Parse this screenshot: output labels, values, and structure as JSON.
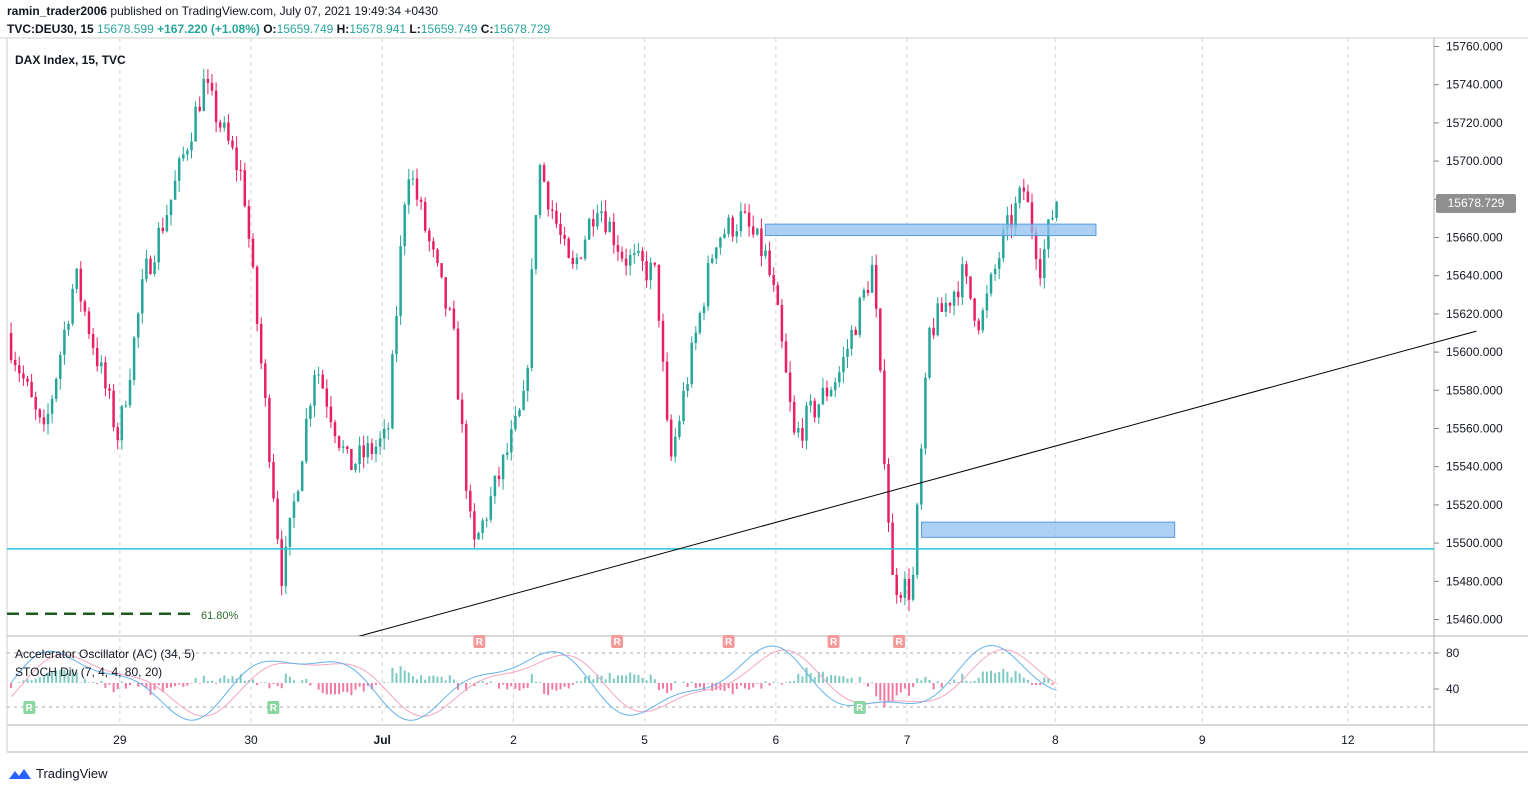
{
  "header": {
    "author": "ramin_trader2006",
    "published": "published on TradingView.com, July 07, 2021 19:49:34 +0430",
    "symbol": "TVC:DEU30, 15",
    "last": "15678.599",
    "change": "+167.220 (+1.08%)",
    "o_label": "O:",
    "o": "15659.749",
    "h_label": "H:",
    "h": "15678.941",
    "l_label": "L:",
    "l": "15659.749",
    "c_label": "C:",
    "c": "15678.729"
  },
  "pane": {
    "title": "DAX Index, 15, TVC",
    "current_price": "15678.729",
    "fib_label": "61.80%"
  },
  "indicators": {
    "ac_label": "Accelerator Oscillator (AC) (34, 5)",
    "stoch_label": "STOCH Div (7, 4, 4, 80, 20)",
    "levels": [
      "80",
      "40"
    ],
    "markers": [
      {
        "letter": "R",
        "type": "bull",
        "day": 0.17
      },
      {
        "letter": "R",
        "type": "bull",
        "day": 2.03
      },
      {
        "letter": "R",
        "type": "bear",
        "day": 3.6
      },
      {
        "letter": "R",
        "type": "bear",
        "day": 4.65
      },
      {
        "letter": "R",
        "type": "bear",
        "day": 5.5
      },
      {
        "letter": "R",
        "type": "bear",
        "day": 6.3
      },
      {
        "letter": "R",
        "type": "bull",
        "day": 6.5
      },
      {
        "letter": "R",
        "type": "bear",
        "day": 6.8
      }
    ]
  },
  "branding": {
    "logo_text": "TradingView"
  },
  "colors": {
    "up": "#26a69a",
    "down": "#e91e63",
    "zone": "#90c0f0",
    "support": "#26c6da",
    "fib": "#1e5a1e",
    "trend": "#000000",
    "grid": "#d8d8d8",
    "stoch_k": "#63b3ed",
    "stoch_d": "#f4a6c0"
  },
  "chart_data": {
    "type": "candlestick",
    "title": "DAX Index, 15, TVC",
    "ylim": [
      15450,
      15765
    ],
    "y_ticks": [
      15460,
      15480,
      15500,
      15520,
      15540,
      15560,
      15580,
      15600,
      15620,
      15640,
      15660,
      15680,
      15700,
      15720,
      15740,
      15760
    ],
    "y_tick_labels": [
      "15460.000",
      "15480.000",
      "15500.000",
      "15520.000",
      "15540.000",
      "15560.000",
      "15580.000",
      "15600.000",
      "15620.000",
      "15640.000",
      "15660.000",
      "15680.000",
      "15700.000",
      "15720.000",
      "15740.000",
      "15760.000"
    ],
    "x_tick_labels": [
      "29",
      "30",
      "Jul",
      "2",
      "5",
      "6",
      "7",
      "8",
      "9",
      "12"
    ],
    "x_tick_days": [
      0.86,
      1.86,
      2.86,
      3.86,
      4.86,
      5.86,
      6.86,
      7.99,
      9.11,
      10.22
    ],
    "waypoints": [
      [
        0,
        15610
      ],
      [
        0.28,
        15555
      ],
      [
        0.52,
        15640
      ],
      [
        0.85,
        15555
      ],
      [
        1.05,
        15640
      ],
      [
        1.25,
        15680
      ],
      [
        1.5,
        15740
      ],
      [
        1.8,
        15690
      ],
      [
        2.1,
        15480
      ],
      [
        2.35,
        15595
      ],
      [
        2.6,
        15540
      ],
      [
        2.9,
        15555
      ],
      [
        3.05,
        15700
      ],
      [
        3.4,
        15610
      ],
      [
        3.55,
        15495
      ],
      [
        3.95,
        15575
      ],
      [
        4.05,
        15700
      ],
      [
        4.3,
        15640
      ],
      [
        4.5,
        15680
      ],
      [
        4.7,
        15650
      ],
      [
        4.95,
        15640
      ],
      [
        5.05,
        15540
      ],
      [
        5.4,
        15660
      ],
      [
        5.6,
        15670
      ],
      [
        5.78,
        15650
      ],
      [
        5.86,
        15625
      ],
      [
        6.0,
        15555
      ],
      [
        6.35,
        15590
      ],
      [
        6.6,
        15645
      ],
      [
        6.75,
        15480
      ],
      [
        6.9,
        15475
      ],
      [
        7.03,
        15610
      ],
      [
        7.28,
        15640
      ],
      [
        7.42,
        15615
      ],
      [
        7.6,
        15660
      ],
      [
        7.75,
        15685
      ],
      [
        7.88,
        15645
      ],
      [
        7.99,
        15679
      ]
    ],
    "zones": [
      {
        "from_day": 5.78,
        "to_day": 8.3,
        "low": 15661,
        "high": 15667
      },
      {
        "from_day": 6.97,
        "to_day": 8.9,
        "low": 15503,
        "high": 15511
      }
    ],
    "support_level": 15497,
    "fib_level": {
      "value": 15463,
      "label": "61.80%",
      "from_day": 0.0,
      "to_day": 1.4
    },
    "trendline": {
      "from": {
        "day": 2.35,
        "price": 15445
      },
      "to": {
        "day": 11.2,
        "price": 15611
      }
    },
    "last_price": 15678.729
  }
}
